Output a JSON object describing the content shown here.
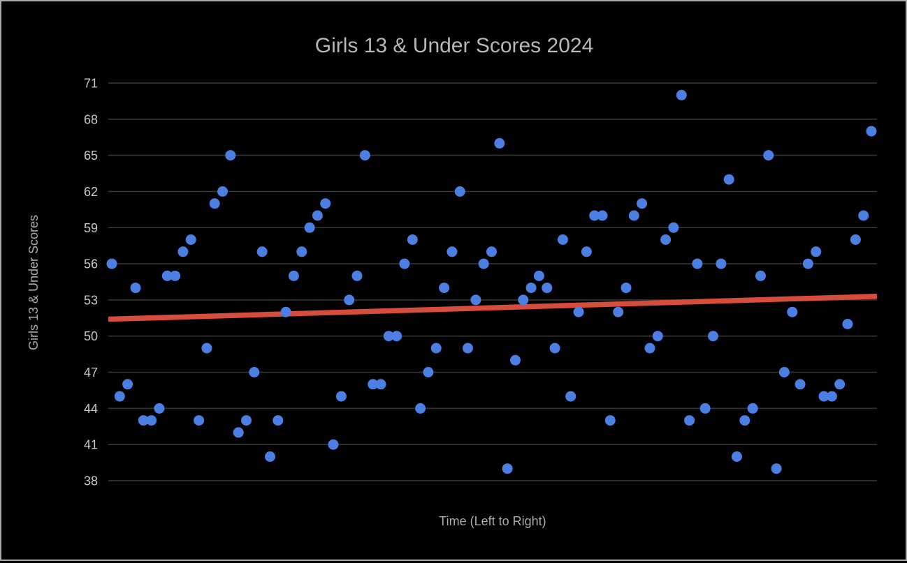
{
  "window": {
    "background_color": "#000000",
    "border_color": "#a9a9a9"
  },
  "chart_data": {
    "type": "scatter",
    "title": "Girls 13 & Under Scores 2024",
    "xlabel": "Time (Left to Right)",
    "ylabel": "Girls 13 & Under Scores",
    "yticks": [
      71,
      68,
      65,
      62,
      59,
      56,
      53,
      50,
      47,
      44,
      41,
      38
    ],
    "ylim": [
      38,
      71
    ],
    "x_is_sequential": true,
    "grid": true,
    "legend": "none",
    "values": [
      56,
      45,
      46,
      54,
      43,
      43,
      44,
      55,
      55,
      57,
      58,
      43,
      49,
      61,
      62,
      65,
      42,
      43,
      47,
      57,
      40,
      43,
      52,
      55,
      57,
      59,
      60,
      61,
      41,
      45,
      53,
      55,
      65,
      46,
      46,
      50,
      50,
      56,
      58,
      44,
      47,
      49,
      54,
      57,
      62,
      49,
      53,
      56,
      57,
      66,
      39,
      48,
      53,
      54,
      55,
      54,
      49,
      58,
      45,
      52,
      57,
      60,
      60,
      43,
      52,
      54,
      60,
      61,
      49,
      50,
      58,
      59,
      70,
      43,
      56,
      44,
      50,
      56,
      63,
      40,
      43,
      44,
      55,
      65,
      39,
      47,
      52,
      46,
      56,
      57,
      45,
      45,
      46,
      51,
      58,
      60,
      67
    ],
    "trendline": {
      "start_value": 51.4,
      "end_value": 53.3
    },
    "colors": {
      "point": "#4c7fe3",
      "trend": "#d84c3b",
      "gridline": "#3a3a3a",
      "title_text": "#b7b7b7",
      "axis_label_text": "#a8acac",
      "tick_label_text": "#c9c9c9"
    }
  }
}
